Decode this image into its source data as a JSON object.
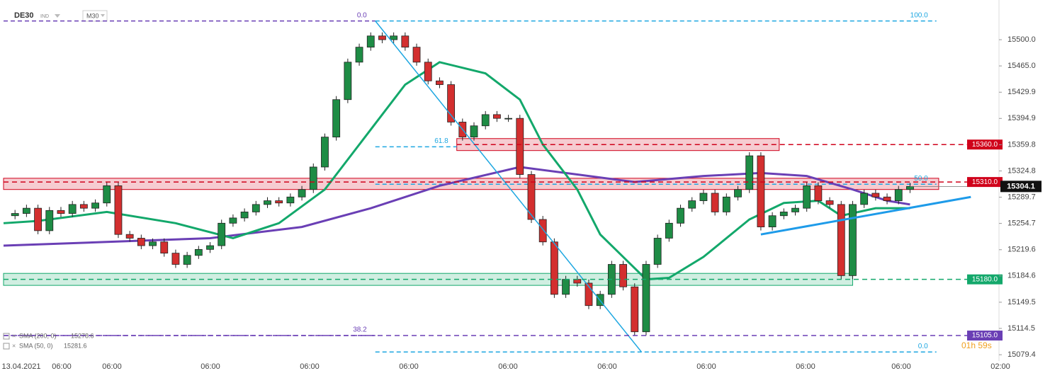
{
  "chart_data": {
    "type": "candlestick",
    "symbol": "DE30",
    "symbol_type": "IND",
    "timeframe": "M30",
    "xlim": [
      0,
      87
    ],
    "ylim": [
      15071,
      15553
    ],
    "yticks": [
      {
        "value": 15500.0,
        "label": "15500.0"
      },
      {
        "value": 15465.0,
        "label": "15465.0"
      },
      15429.9,
      15394.9,
      15359.8,
      15324.8,
      15289.7,
      15254.7,
      15219.6,
      15184.6,
      15149.5,
      15114.5,
      15079.4
    ],
    "x_labels": [
      "13.04.2021",
      "06:00",
      "06:00",
      "06:00",
      "06:00",
      "06:00",
      "06:00",
      "06:00",
      "06:00",
      "06:00",
      "06:00",
      "02:00"
    ],
    "up_color": "#1e8c45",
    "down_color": "#d32f2f",
    "close": [
      15265,
      15268,
      15275,
      15245,
      15272,
      15268,
      15280,
      15275,
      15282,
      15305,
      15240,
      15235,
      15225,
      15230,
      15215,
      15200,
      15212,
      15220,
      15225,
      15255,
      15262,
      15270,
      15280,
      15285,
      15282,
      15290,
      15300,
      15330,
      15370,
      15420,
      15470,
      15490,
      15505,
      15500,
      15505,
      15490,
      15470,
      15445,
      15440,
      15390,
      15370,
      15385,
      15400,
      15395,
      15395,
      15320,
      15260,
      15230,
      15160,
      15180,
      15175,
      15145,
      15160,
      15200,
      15170,
      15110,
      15200,
      15235,
      15255,
      15275,
      15285,
      15295,
      15270,
      15290,
      15300,
      15345,
      15250,
      15265,
      15270,
      15275,
      15305,
      15285,
      15280,
      15185,
      15280,
      15295,
      15290,
      15285,
      15300,
      15304.1
    ],
    "series": [
      {
        "name": "SMA (200, 0)",
        "legend_value": 15278.6,
        "color": "#6a3fb5",
        "x": [
          0,
          9,
          18,
          26,
          32,
          38,
          45,
          50,
          55,
          61,
          66,
          70,
          74,
          77,
          79
        ],
        "values": [
          15225,
          15230,
          15235,
          15250,
          15275,
          15305,
          15330,
          15320,
          15310,
          15318,
          15322,
          15318,
          15300,
          15285,
          15280
        ]
      },
      {
        "name": "SMA (50, 0)",
        "legend_value": 15281.6,
        "color": "#13a86b",
        "x": [
          0,
          3,
          9,
          15,
          20,
          24,
          28,
          32,
          35,
          38,
          42,
          45,
          47,
          50,
          52,
          55,
          56,
          58,
          61,
          65,
          68,
          71,
          73,
          76,
          79
        ],
        "values": [
          15255,
          15258,
          15270,
          15255,
          15235,
          15255,
          15300,
          15380,
          15440,
          15470,
          15455,
          15420,
          15360,
          15300,
          15240,
          15195,
          15180,
          15182,
          15210,
          15260,
          15282,
          15285,
          15265,
          15275,
          15275
        ]
      }
    ],
    "zones": [
      {
        "low": 15352,
        "high": 15368,
        "from": 39.5,
        "to": 67.6,
        "color": "#d0021b"
      },
      {
        "low": 15300,
        "high": 15315,
        "from": 0,
        "to": 81.5,
        "color": "#d0021b"
      },
      {
        "low": 15172,
        "high": 15188,
        "from": 0,
        "to": 74,
        "color": "#13a86b"
      }
    ],
    "levels": [
      {
        "value": 15360,
        "label": "15360.0",
        "from": 39.5,
        "color": "#d0021b"
      },
      {
        "value": 15310,
        "label": "15310.0",
        "from": 0,
        "color": "#d0021b"
      },
      {
        "value": 15180,
        "label": "15180.0",
        "from": 0,
        "color": "#13a86b"
      },
      {
        "value": 15105,
        "label": "15105.0",
        "from": 0,
        "color": "#6a3fb5"
      }
    ],
    "fib": [
      {
        "label": "0.0",
        "value": 15525,
        "from": 0,
        "to": 32.4,
        "color": "#6a3fb5"
      },
      {
        "label": "100.0",
        "value": 15525,
        "from": 32.4,
        "to": 81.3,
        "color": "#1ea7e1"
      },
      {
        "label": "61.8",
        "value": 15357,
        "from": 32.4,
        "to": 39.5,
        "color": "#1ea7e1"
      },
      {
        "label": "50.0",
        "value": 15307,
        "from": 32.4,
        "to": 81.3,
        "color": "#1ea7e1"
      },
      {
        "label": "38.2",
        "value": 15105,
        "from": 0,
        "to": 32.4,
        "color": "#6a3fb5"
      },
      {
        "label": "0.0",
        "value": 15083,
        "from": 32.4,
        "to": 81.3,
        "color": "#1ea7e1"
      }
    ],
    "trendlines": [
      {
        "x": [
          32.4,
          55.6
        ],
        "y": [
          15525,
          15083
        ],
        "color": "#1ea7e1",
        "width": 1.5
      },
      {
        "x": [
          66,
          84.3
        ],
        "y": [
          15240,
          15290
        ],
        "color": "#1e9be9",
        "width": 3
      }
    ],
    "current_price": 15304.1,
    "countdown": "01h 59s"
  }
}
